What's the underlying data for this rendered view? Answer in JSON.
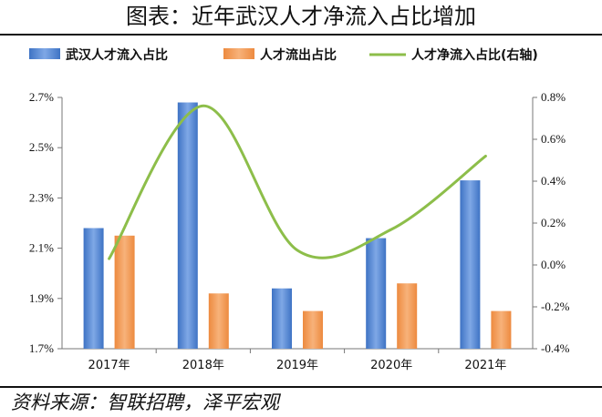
{
  "header": {
    "title": "图表：近年武汉人才净流入占比增加"
  },
  "footer": {
    "source": "资料来源：智联招聘，泽平宏观"
  },
  "chart_data": {
    "type": "bar",
    "categories": [
      "2017年",
      "2018年",
      "2019年",
      "2020年",
      "2021年"
    ],
    "series": [
      {
        "name": "武汉人才流入占比",
        "type": "bar",
        "axis": "left",
        "color": "#3E73C4",
        "values": [
          2.18,
          2.68,
          1.94,
          2.14,
          2.37
        ]
      },
      {
        "name": "人才流出占比",
        "type": "bar",
        "axis": "left",
        "color": "#ED8A3F",
        "values": [
          2.15,
          1.92,
          1.85,
          1.96,
          1.85
        ]
      },
      {
        "name": "人才净流入占比(右轴)",
        "type": "line",
        "axis": "right",
        "color": "#8DBE4A",
        "values": [
          0.03,
          0.76,
          0.07,
          0.17,
          0.52
        ]
      }
    ],
    "y_left": {
      "min": 1.7,
      "max": 2.7,
      "ticks": [
        "1.7%",
        "1.9%",
        "2.1%",
        "2.3%",
        "2.5%",
        "2.7%"
      ]
    },
    "y_right": {
      "min": -0.4,
      "max": 0.8,
      "ticks": [
        "-0.4%",
        "-0.2%",
        "0.0%",
        "0.2%",
        "0.4%",
        "0.6%",
        "0.8%"
      ]
    },
    "legend_position": "top",
    "grid": false
  }
}
